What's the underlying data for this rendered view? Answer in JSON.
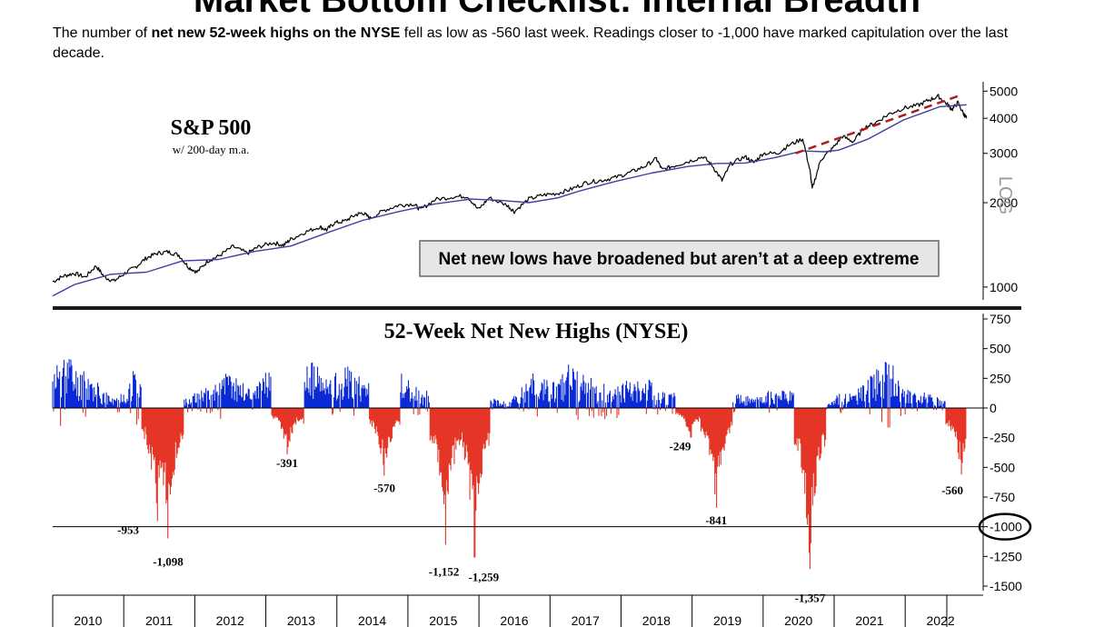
{
  "page": {
    "title": "Market Bottom Checklist: Internal Breadth",
    "intro_pre": "The number of ",
    "intro_bold": "net new 52-week highs on the NYSE",
    "intro_post": " fell as low as -560 last week.  Readings closer to -1,000 have marked capitulation over the last decade."
  },
  "colors": {
    "price_line": "#000000",
    "ma_line": "#3f3fa0",
    "trend_line": "#b01c1c",
    "positive_bars": "#0a2ad6",
    "negative_bars": "#e53526",
    "callout_fill": "#e6e6e6"
  },
  "chart_data": [
    {
      "type": "line",
      "title": "S&P 500",
      "subtitle": "w/ 200-day m.a.",
      "y_scale": "log",
      "ylim": [
        900,
        5400
      ],
      "y_ticks": [
        1000,
        2000,
        3000,
        4000,
        5000
      ],
      "y_tick_labels": [
        "1000",
        "2000",
        "3000",
        "4000",
        "5000"
      ],
      "y_axis_label": "LOG",
      "xlim": [
        2009.7,
        2022.5
      ],
      "callout": "Net new lows have broadened but aren’t at a deep extreme",
      "series": [
        {
          "name": "",
          "role": "price",
          "points": [
            [
              2009.7,
              1045
            ],
            [
              2009.85,
              1095
            ],
            [
              2010.0,
              1120
            ],
            [
              2010.15,
              1085
            ],
            [
              2010.3,
              1190
            ],
            [
              2010.42,
              1085
            ],
            [
              2010.55,
              1050
            ],
            [
              2010.7,
              1120
            ],
            [
              2010.85,
              1180
            ],
            [
              2011.0,
              1270
            ],
            [
              2011.15,
              1320
            ],
            [
              2011.3,
              1335
            ],
            [
              2011.45,
              1300
            ],
            [
              2011.58,
              1180
            ],
            [
              2011.7,
              1130
            ],
            [
              2011.85,
              1240
            ],
            [
              2012.0,
              1290
            ],
            [
              2012.2,
              1395
            ],
            [
              2012.4,
              1320
            ],
            [
              2012.55,
              1390
            ],
            [
              2012.75,
              1440
            ],
            [
              2012.9,
              1410
            ],
            [
              2013.0,
              1480
            ],
            [
              2013.2,
              1570
            ],
            [
              2013.4,
              1640
            ],
            [
              2013.5,
              1600
            ],
            [
              2013.6,
              1690
            ],
            [
              2013.75,
              1720
            ],
            [
              2013.9,
              1810
            ],
            [
              2014.0,
              1840
            ],
            [
              2014.1,
              1760
            ],
            [
              2014.3,
              1880
            ],
            [
              2014.5,
              1960
            ],
            [
              2014.7,
              1980
            ],
            [
              2014.8,
              1890
            ],
            [
              2015.0,
              2050
            ],
            [
              2015.25,
              2100
            ],
            [
              2015.45,
              2110
            ],
            [
              2015.6,
              1890
            ],
            [
              2015.75,
              2080
            ],
            [
              2016.0,
              1960
            ],
            [
              2016.1,
              1860
            ],
            [
              2016.3,
              2060
            ],
            [
              2016.5,
              2130
            ],
            [
              2016.7,
              2160
            ],
            [
              2016.9,
              2240
            ],
            [
              2017.1,
              2360
            ],
            [
              2017.3,
              2400
            ],
            [
              2017.5,
              2460
            ],
            [
              2017.7,
              2560
            ],
            [
              2017.9,
              2690
            ],
            [
              2018.07,
              2870
            ],
            [
              2018.15,
              2620
            ],
            [
              2018.3,
              2700
            ],
            [
              2018.5,
              2800
            ],
            [
              2018.72,
              2920
            ],
            [
              2018.85,
              2700
            ],
            [
              2018.98,
              2400
            ],
            [
              2019.1,
              2750
            ],
            [
              2019.3,
              2920
            ],
            [
              2019.42,
              2780
            ],
            [
              2019.55,
              3000
            ],
            [
              2019.75,
              3000
            ],
            [
              2019.9,
              3200
            ],
            [
              2020.1,
              3380
            ],
            [
              2020.2,
              2600
            ],
            [
              2020.23,
              2240
            ],
            [
              2020.35,
              2850
            ],
            [
              2020.5,
              3100
            ],
            [
              2020.65,
              3450
            ],
            [
              2020.8,
              3300
            ],
            [
              2020.95,
              3700
            ],
            [
              2021.1,
              3850
            ],
            [
              2021.3,
              4150
            ],
            [
              2021.5,
              4350
            ],
            [
              2021.7,
              4450
            ],
            [
              2021.85,
              4650
            ],
            [
              2021.98,
              4790
            ],
            [
              2022.1,
              4500
            ],
            [
              2022.17,
              4300
            ],
            [
              2022.25,
              4550
            ],
            [
              2022.33,
              4150
            ],
            [
              2022.37,
              4000
            ]
          ]
        },
        {
          "name": "",
          "role": "200-day m.a.",
          "points": [
            [
              2009.7,
              930
            ],
            [
              2010.0,
              1020
            ],
            [
              2010.5,
              1110
            ],
            [
              2011.0,
              1130
            ],
            [
              2011.5,
              1240
            ],
            [
              2011.85,
              1250
            ],
            [
              2012.0,
              1255
            ],
            [
              2012.5,
              1340
            ],
            [
              2013.0,
              1400
            ],
            [
              2013.5,
              1560
            ],
            [
              2014.0,
              1730
            ],
            [
              2014.5,
              1860
            ],
            [
              2015.0,
              1980
            ],
            [
              2015.5,
              2060
            ],
            [
              2015.9,
              2040
            ],
            [
              2016.3,
              2000
            ],
            [
              2016.7,
              2080
            ],
            [
              2017.0,
              2200
            ],
            [
              2017.5,
              2380
            ],
            [
              2018.0,
              2550
            ],
            [
              2018.5,
              2690
            ],
            [
              2018.9,
              2760
            ],
            [
              2019.3,
              2770
            ],
            [
              2019.7,
              2890
            ],
            [
              2020.1,
              3060
            ],
            [
              2020.4,
              3040
            ],
            [
              2020.6,
              3080
            ],
            [
              2021.0,
              3370
            ],
            [
              2021.5,
              3950
            ],
            [
              2022.0,
              4400
            ],
            [
              2022.37,
              4470
            ]
          ]
        },
        {
          "name": "",
          "role": "trend line",
          "points": [
            [
              2020.0,
              3000
            ],
            [
              2022.3,
              4850
            ]
          ]
        }
      ]
    },
    {
      "type": "bar",
      "title": "52-Week Net New Highs (NYSE)",
      "xlim": [
        2009.7,
        2022.5
      ],
      "ylim": [
        -1550,
        800
      ],
      "y_ticks": [
        750,
        500,
        250,
        0,
        -250,
        -500,
        -750,
        -1000,
        -1250,
        -1500
      ],
      "y_tick_labels": [
        "750",
        "500",
        "250",
        "0",
        "-250",
        "-500",
        "-750",
        "-1000",
        "-1250",
        "-1500"
      ],
      "highlighted_tick": "-1000",
      "reference_line": -1000,
      "x_tick_labels": [
        "2010",
        "2011",
        "2012",
        "2013",
        "2014",
        "2015",
        "2016",
        "2017",
        "2018",
        "2019",
        "2020",
        "2021",
        "2022"
      ],
      "annotations": [
        {
          "x": 2011.15,
          "y": -953,
          "label": "-953"
        },
        {
          "x": 2011.3,
          "y": -1098,
          "label": "-1,098"
        },
        {
          "x": 2012.95,
          "y": -391,
          "label": "-391"
        },
        {
          "x": 2014.3,
          "y": -570,
          "label": "-570"
        },
        {
          "x": 2015.15,
          "y": -1152,
          "label": "-1,152"
        },
        {
          "x": 2015.55,
          "y": -1259,
          "label": "-1,259"
        },
        {
          "x": 2018.55,
          "y": -249,
          "label": "-249"
        },
        {
          "x": 2018.9,
          "y": -841,
          "label": "-841"
        },
        {
          "x": 2020.2,
          "y": -1357,
          "label": "-1,357"
        },
        {
          "x": 2022.3,
          "y": -560,
          "label": "-560"
        }
      ],
      "envelope": [
        [
          2009.7,
          320
        ],
        [
          2009.8,
          480
        ],
        [
          2009.9,
          560
        ],
        [
          2010.0,
          350
        ],
        [
          2010.2,
          300
        ],
        [
          2010.4,
          170
        ],
        [
          2010.55,
          80
        ],
        [
          2010.7,
          180
        ],
        [
          2010.85,
          380
        ],
        [
          2011.0,
          300
        ],
        [
          2011.1,
          170
        ],
        [
          2011.3,
          130
        ],
        [
          2011.45,
          80
        ],
        [
          2011.6,
          100
        ],
        [
          2011.75,
          170
        ],
        [
          2011.9,
          220
        ],
        [
          2012.0,
          250
        ],
        [
          2012.15,
          320
        ],
        [
          2012.3,
          250
        ],
        [
          2012.45,
          170
        ],
        [
          2012.55,
          240
        ],
        [
          2012.7,
          380
        ],
        [
          2012.85,
          350
        ],
        [
          2013.0,
          450
        ],
        [
          2013.15,
          380
        ],
        [
          2013.3,
          400
        ],
        [
          2013.45,
          300
        ],
        [
          2013.55,
          250
        ],
        [
          2013.7,
          400
        ],
        [
          2013.85,
          330
        ],
        [
          2014.0,
          300
        ],
        [
          2014.2,
          330
        ],
        [
          2014.35,
          250
        ],
        [
          2014.5,
          330
        ],
        [
          2014.7,
          200
        ],
        [
          2014.85,
          140
        ],
        [
          2015.0,
          250
        ],
        [
          2015.2,
          220
        ],
        [
          2015.35,
          160
        ],
        [
          2015.5,
          60
        ],
        [
          2015.65,
          40
        ],
        [
          2015.8,
          100
        ],
        [
          2015.9,
          60
        ],
        [
          2016.05,
          60
        ],
        [
          2016.2,
          200
        ],
        [
          2016.35,
          300
        ],
        [
          2016.5,
          280
        ],
        [
          2016.7,
          220
        ],
        [
          2016.85,
          380
        ],
        [
          2017.0,
          300
        ],
        [
          2017.2,
          250
        ],
        [
          2017.4,
          230
        ],
        [
          2017.6,
          230
        ],
        [
          2017.8,
          250
        ],
        [
          2018.0,
          240
        ],
        [
          2018.1,
          140
        ],
        [
          2018.3,
          130
        ],
        [
          2018.5,
          140
        ],
        [
          2018.7,
          120
        ],
        [
          2018.85,
          80
        ],
        [
          2019.0,
          70
        ],
        [
          2019.2,
          120
        ],
        [
          2019.4,
          100
        ],
        [
          2019.6,
          150
        ],
        [
          2019.8,
          150
        ],
        [
          2020.05,
          160
        ],
        [
          2020.18,
          40
        ],
        [
          2020.3,
          0
        ],
        [
          2020.45,
          60
        ],
        [
          2020.6,
          120
        ],
        [
          2020.75,
          120
        ],
        [
          2020.9,
          190
        ],
        [
          2021.05,
          300
        ],
        [
          2021.2,
          360
        ],
        [
          2021.3,
          480
        ],
        [
          2021.4,
          300
        ],
        [
          2021.55,
          200
        ],
        [
          2021.7,
          140
        ],
        [
          2021.85,
          130
        ],
        [
          2022.0,
          90
        ],
        [
          2022.1,
          50
        ],
        [
          2022.2,
          30
        ],
        [
          2022.3,
          20
        ],
        [
          2022.37,
          0
        ]
      ]
    }
  ]
}
